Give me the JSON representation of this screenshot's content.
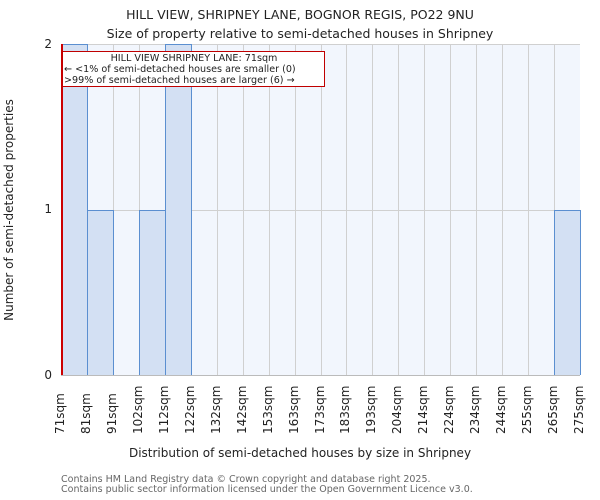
{
  "header": {
    "title": "HILL VIEW, SHRIPNEY LANE, BOGNOR REGIS, PO22 9NU",
    "subtitle": "Size of property relative to semi-detached houses in Shripney"
  },
  "annotation": {
    "title": "HILL VIEW SHRIPNEY LANE: 71sqm",
    "line1": "← <1% of semi-detached houses are smaller (0)",
    "line2": ">99% of semi-detached houses are larger (6) →"
  },
  "axes": {
    "ylabel": "Number of semi-detached properties",
    "xlabel": "Distribution of semi-detached houses by size in Shripney",
    "yticks": [
      "0",
      "1",
      "2"
    ]
  },
  "footer": {
    "line1": "Contains HM Land Registry data © Crown copyright and database right 2025.",
    "line2": "Contains public sector information licensed under the Open Government Licence v3.0."
  },
  "colors": {
    "bar_fill": "#d3e0f3",
    "bar_edge": "#5b8fd0",
    "marker": "#cc0000",
    "plot_bg": "#f2f6fd"
  },
  "chart_data": {
    "type": "bar",
    "title": "HILL VIEW, SHRIPNEY LANE, BOGNOR REGIS, PO22 9NU",
    "subtitle": "Size of property relative to semi-detached houses in Shripney",
    "xlabel": "Distribution of semi-detached houses by size in Shripney",
    "ylabel": "Number of semi-detached properties",
    "categories": [
      "71sqm",
      "81sqm",
      "91sqm",
      "102sqm",
      "112sqm",
      "122sqm",
      "132sqm",
      "142sqm",
      "153sqm",
      "163sqm",
      "173sqm",
      "183sqm",
      "193sqm",
      "204sqm",
      "214sqm",
      "224sqm",
      "234sqm",
      "244sqm",
      "255sqm",
      "265sqm",
      "275sqm"
    ],
    "bins": [
      {
        "from": "71sqm",
        "to": "81sqm",
        "value": 2
      },
      {
        "from": "81sqm",
        "to": "91sqm",
        "value": 1
      },
      {
        "from": "91sqm",
        "to": "102sqm",
        "value": 0
      },
      {
        "from": "102sqm",
        "to": "112sqm",
        "value": 1
      },
      {
        "from": "112sqm",
        "to": "122sqm",
        "value": 2
      },
      {
        "from": "122sqm",
        "to": "132sqm",
        "value": 0
      },
      {
        "from": "132sqm",
        "to": "142sqm",
        "value": 0
      },
      {
        "from": "142sqm",
        "to": "153sqm",
        "value": 0
      },
      {
        "from": "153sqm",
        "to": "163sqm",
        "value": 0
      },
      {
        "from": "163sqm",
        "to": "173sqm",
        "value": 0
      },
      {
        "from": "173sqm",
        "to": "183sqm",
        "value": 0
      },
      {
        "from": "183sqm",
        "to": "193sqm",
        "value": 0
      },
      {
        "from": "193sqm",
        "to": "204sqm",
        "value": 0
      },
      {
        "from": "204sqm",
        "to": "214sqm",
        "value": 0
      },
      {
        "from": "214sqm",
        "to": "224sqm",
        "value": 0
      },
      {
        "from": "224sqm",
        "to": "234sqm",
        "value": 0
      },
      {
        "from": "234sqm",
        "to": "244sqm",
        "value": 0
      },
      {
        "from": "244sqm",
        "to": "255sqm",
        "value": 0
      },
      {
        "from": "255sqm",
        "to": "265sqm",
        "value": 0
      },
      {
        "from": "265sqm",
        "to": "275sqm",
        "value": 1
      }
    ],
    "values": [
      2,
      1,
      0,
      1,
      2,
      0,
      0,
      0,
      0,
      0,
      0,
      0,
      0,
      0,
      0,
      0,
      0,
      0,
      0,
      1
    ],
    "ylim": [
      0,
      2
    ],
    "yticks": [
      0,
      1,
      2
    ],
    "grid": true,
    "highlight": {
      "value": "71sqm",
      "label": "HILL VIEW SHRIPNEY LANE: 71sqm",
      "smaller_pct": "<1%",
      "smaller_count": 0,
      "larger_pct": ">99%",
      "larger_count": 6
    }
  }
}
